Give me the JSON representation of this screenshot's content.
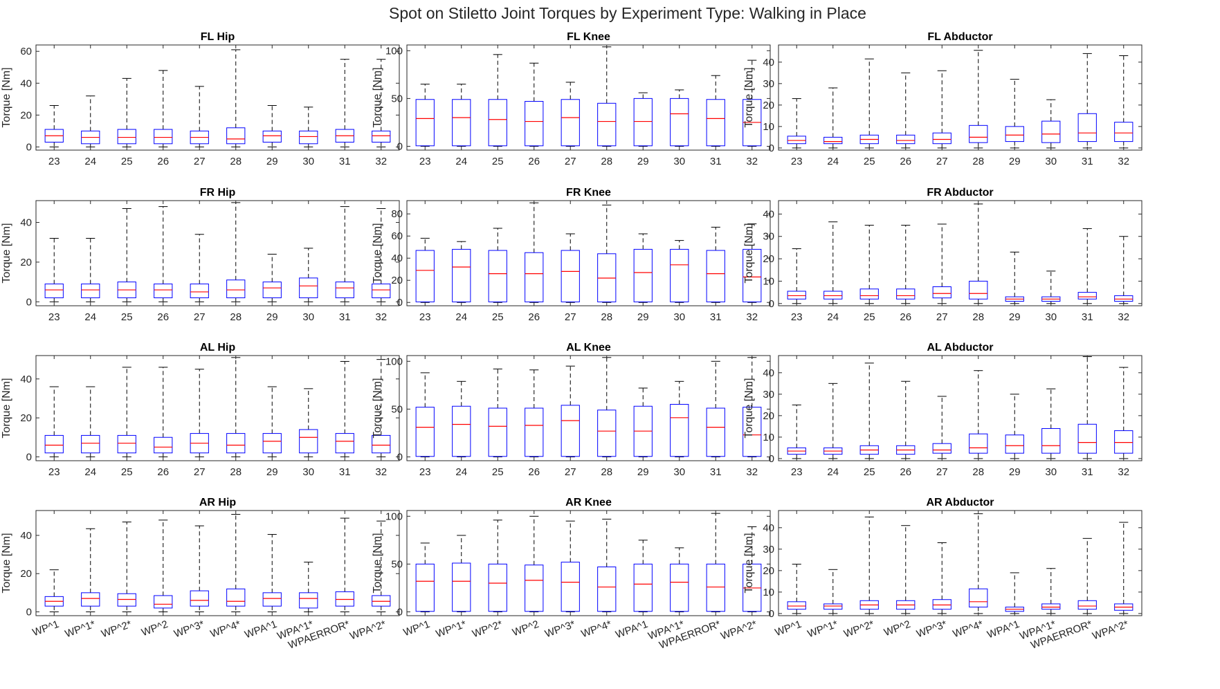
{
  "figure": {
    "title": "Spot on Stiletto Joint Torques by Experiment Type: Walking in Place"
  },
  "style": {
    "box_color": "#0000ff",
    "median_color": "#ff0000",
    "whisker_color": "#000000",
    "axes_color": "#262626"
  },
  "chart_data": [
    {
      "type": "box",
      "title": "FL Hip",
      "ylabel": "Torque [Nm]",
      "ylim": [
        -2,
        64
      ],
      "yticks": [
        0,
        20,
        40,
        60
      ],
      "categories": [
        "23",
        "24",
        "25",
        "26",
        "27",
        "28",
        "29",
        "30",
        "31",
        "32"
      ],
      "boxes": [
        [
          0,
          3,
          7,
          11,
          26
        ],
        [
          0,
          2,
          6,
          10,
          32
        ],
        [
          0,
          2,
          6,
          11,
          43
        ],
        [
          0,
          2,
          6,
          11,
          48
        ],
        [
          0,
          2,
          6,
          10,
          38
        ],
        [
          0,
          2,
          5,
          12,
          61
        ],
        [
          0,
          3,
          7,
          10,
          26
        ],
        [
          0,
          2,
          6.5,
          10,
          25
        ],
        [
          0,
          3,
          7,
          11,
          55
        ],
        [
          0,
          3,
          7,
          10,
          55
        ]
      ]
    },
    {
      "type": "box",
      "title": "FL Knee",
      "ylabel": "Torque [Nm]",
      "ylim": [
        -4,
        106
      ],
      "yticks": [
        0,
        50,
        100
      ],
      "categories": [
        "23",
        "24",
        "25",
        "26",
        "27",
        "28",
        "29",
        "30",
        "31",
        "32"
      ],
      "boxes": [
        [
          0,
          0.5,
          29,
          49,
          65
        ],
        [
          0,
          0.5,
          30,
          49,
          65
        ],
        [
          0,
          0.5,
          28,
          49,
          96
        ],
        [
          0,
          0.5,
          26,
          47,
          87
        ],
        [
          0,
          0.5,
          30,
          49,
          67
        ],
        [
          0,
          0.5,
          26,
          45,
          104
        ],
        [
          0,
          0.5,
          26,
          50,
          56
        ],
        [
          0,
          0.5,
          34,
          50,
          59
        ],
        [
          0,
          0.5,
          29,
          49,
          74
        ],
        [
          0,
          0.5,
          25,
          49,
          90
        ]
      ]
    },
    {
      "type": "box",
      "title": "FL Abductor",
      "ylabel": "Torque [Nm]",
      "ylim": [
        -1,
        48
      ],
      "yticks": [
        0,
        10,
        20,
        30,
        40
      ],
      "categories": [
        "23",
        "24",
        "25",
        "26",
        "27",
        "28",
        "29",
        "30",
        "31",
        "32"
      ],
      "boxes": [
        [
          0,
          2,
          3.5,
          5.5,
          23
        ],
        [
          0,
          2,
          3,
          5,
          28
        ],
        [
          0,
          2,
          4,
          6,
          41.5
        ],
        [
          0,
          2,
          3.5,
          6,
          35
        ],
        [
          0,
          2,
          4,
          7,
          36
        ],
        [
          0,
          2.5,
          5,
          10.5,
          45.5
        ],
        [
          0,
          3,
          6,
          10,
          32
        ],
        [
          0,
          2.5,
          6.5,
          12.5,
          22.5
        ],
        [
          0,
          3,
          7,
          16,
          44
        ],
        [
          0,
          3,
          7,
          12,
          43
        ]
      ]
    },
    {
      "type": "box",
      "title": "FR Hip",
      "ylabel": "Torque [Nm]",
      "ylim": [
        -2,
        51
      ],
      "yticks": [
        0,
        20,
        40
      ],
      "categories": [
        "23",
        "24",
        "25",
        "26",
        "27",
        "28",
        "29",
        "30",
        "31",
        "32"
      ],
      "boxes": [
        [
          0,
          2,
          6,
          9,
          32
        ],
        [
          0,
          2,
          6,
          9,
          32
        ],
        [
          0,
          2,
          6,
          10,
          47
        ],
        [
          0,
          2,
          6,
          9,
          48
        ],
        [
          0,
          2,
          5,
          9,
          34
        ],
        [
          0,
          2,
          6,
          11,
          50
        ],
        [
          0,
          2,
          7,
          10,
          24
        ],
        [
          0,
          2,
          8,
          12,
          27
        ],
        [
          0,
          2,
          7,
          10,
          48
        ],
        [
          0,
          2,
          6,
          9,
          47
        ]
      ]
    },
    {
      "type": "box",
      "title": "FR Knee",
      "ylabel": "Torque [Nm]",
      "ylim": [
        -3,
        92
      ],
      "yticks": [
        0,
        20,
        40,
        60,
        80
      ],
      "categories": [
        "23",
        "24",
        "25",
        "26",
        "27",
        "28",
        "29",
        "30",
        "31",
        "32"
      ],
      "boxes": [
        [
          0,
          0.5,
          29,
          47,
          58
        ],
        [
          0,
          0.5,
          32,
          48,
          55
        ],
        [
          0,
          0.5,
          26,
          47,
          67
        ],
        [
          0,
          0.5,
          26,
          45,
          90
        ],
        [
          0,
          0.5,
          28,
          47,
          62
        ],
        [
          0,
          0.5,
          22,
          44,
          88
        ],
        [
          0,
          0.5,
          27,
          48,
          62
        ],
        [
          0,
          0.5,
          34,
          48,
          56
        ],
        [
          0,
          0.5,
          26,
          47,
          68
        ],
        [
          0,
          0.5,
          23,
          48,
          71
        ]
      ]
    },
    {
      "type": "box",
      "title": "FR Abductor",
      "ylabel": "Torque [Nm]",
      "ylim": [
        -1,
        46
      ],
      "yticks": [
        0,
        10,
        20,
        30,
        40
      ],
      "categories": [
        "23",
        "24",
        "25",
        "26",
        "27",
        "28",
        "29",
        "30",
        "31",
        "32"
      ],
      "boxes": [
        [
          0,
          2,
          3.5,
          5.5,
          24.5
        ],
        [
          0,
          2,
          3.5,
          5.5,
          36.5
        ],
        [
          0,
          2,
          3.5,
          6.5,
          35
        ],
        [
          0,
          2,
          3.5,
          6.5,
          35
        ],
        [
          0,
          2.5,
          4.5,
          7.5,
          35.5
        ],
        [
          0,
          2,
          4.5,
          10,
          44.5
        ],
        [
          0,
          1,
          2,
          3,
          23
        ],
        [
          0,
          1,
          2,
          3,
          14.5
        ],
        [
          0,
          2,
          3,
          5,
          33.5
        ],
        [
          0,
          1,
          2,
          3.5,
          30
        ]
      ]
    },
    {
      "type": "box",
      "title": "AL Hip",
      "ylabel": "Torque [Nm]",
      "ylim": [
        -2,
        52
      ],
      "yticks": [
        0,
        20,
        40
      ],
      "categories": [
        "23",
        "24",
        "25",
        "26",
        "27",
        "28",
        "29",
        "30",
        "31",
        "32"
      ],
      "boxes": [
        [
          0,
          2,
          6,
          11,
          36
        ],
        [
          0,
          2,
          7,
          11,
          36
        ],
        [
          0,
          2,
          7,
          11,
          46
        ],
        [
          0,
          2,
          5,
          10,
          46
        ],
        [
          0,
          2,
          7,
          12,
          45
        ],
        [
          0,
          2,
          6,
          12,
          51
        ],
        [
          0,
          2,
          8,
          12,
          36
        ],
        [
          0,
          2,
          10,
          14,
          35
        ],
        [
          0,
          2,
          8,
          12,
          49
        ],
        [
          0,
          2,
          6,
          11,
          50
        ]
      ]
    },
    {
      "type": "box",
      "title": "AL Knee",
      "ylabel": "Torque [Nm]",
      "ylim": [
        -4,
        106
      ],
      "yticks": [
        0,
        50,
        100
      ],
      "categories": [
        "23",
        "24",
        "25",
        "26",
        "27",
        "28",
        "29",
        "30",
        "31",
        "32"
      ],
      "boxes": [
        [
          0,
          0.5,
          31,
          52,
          88
        ],
        [
          0,
          0.5,
          34,
          53,
          79
        ],
        [
          0,
          0.5,
          32,
          51,
          92
        ],
        [
          0,
          0.5,
          33,
          51,
          91
        ],
        [
          0,
          0.5,
          38,
          54,
          95
        ],
        [
          0,
          0.5,
          27,
          49,
          104
        ],
        [
          0,
          0.5,
          27,
          53,
          72
        ],
        [
          0,
          0.5,
          41,
          55,
          79
        ],
        [
          0,
          0.5,
          31,
          51,
          100
        ],
        [
          0,
          0.5,
          23,
          52,
          104
        ]
      ]
    },
    {
      "type": "box",
      "title": "AL Abductor",
      "ylabel": "Torque [Nm]",
      "ylim": [
        -1,
        48
      ],
      "yticks": [
        0,
        10,
        20,
        30,
        40
      ],
      "categories": [
        "23",
        "24",
        "25",
        "26",
        "27",
        "28",
        "29",
        "30",
        "31",
        "32"
      ],
      "boxes": [
        [
          0,
          2,
          3.5,
          5,
          25
        ],
        [
          0,
          2,
          3.5,
          5,
          35
        ],
        [
          0,
          2,
          4,
          6,
          44.5
        ],
        [
          0,
          2,
          4,
          6,
          36
        ],
        [
          0,
          2.5,
          4,
          7,
          29
        ],
        [
          0,
          2.5,
          5,
          11.5,
          41
        ],
        [
          0,
          2.5,
          6,
          11,
          30
        ],
        [
          0,
          2.5,
          6,
          14,
          32.5
        ],
        [
          0,
          2.5,
          7.5,
          16,
          47.5
        ],
        [
          0,
          2.5,
          7.5,
          13,
          42.5
        ]
      ]
    },
    {
      "type": "box",
      "title": "AR Hip",
      "ylabel": "Torque [Nm]",
      "ylim": [
        -2,
        53
      ],
      "yticks": [
        0,
        20,
        40
      ],
      "categories": [
        "WP^1",
        "WP^1*",
        "WP^2*",
        "WP^2",
        "WP^3*",
        "WP^4*",
        "WPA^1",
        "WPA^1*",
        "WPAERROR*",
        "WPA^2*"
      ],
      "boxes": [
        [
          0,
          3,
          5.5,
          8,
          22
        ],
        [
          0,
          3,
          7,
          10,
          43.5
        ],
        [
          0,
          3,
          6.5,
          9.5,
          47
        ],
        [
          0,
          2,
          4,
          8.5,
          48
        ],
        [
          0,
          3,
          6,
          11,
          45
        ],
        [
          0,
          3,
          5.5,
          12,
          51
        ],
        [
          0,
          3,
          7,
          10,
          40.5
        ],
        [
          0,
          2,
          7,
          10,
          26
        ],
        [
          0,
          3,
          6.5,
          10.5,
          49
        ],
        [
          0,
          3,
          5.5,
          8.5,
          47.5
        ]
      ]
    },
    {
      "type": "box",
      "title": "AR Knee",
      "ylabel": "Torque [Nm]",
      "ylim": [
        -4,
        106
      ],
      "yticks": [
        0,
        50,
        100
      ],
      "categories": [
        "WP^1",
        "WP^1*",
        "WP^2*",
        "WP^2",
        "WP^3*",
        "WP^4*",
        "WPA^1",
        "WPA^1*",
        "WPAERROR*",
        "WPA^2*"
      ],
      "boxes": [
        [
          0,
          0.5,
          32,
          50,
          72
        ],
        [
          0,
          0.5,
          32,
          51,
          80
        ],
        [
          0,
          0.5,
          30,
          50,
          96
        ],
        [
          0,
          0.5,
          33,
          49,
          100
        ],
        [
          0,
          0.5,
          31,
          52,
          95
        ],
        [
          0,
          0.5,
          26,
          47,
          97
        ],
        [
          0,
          0.5,
          29,
          50,
          75
        ],
        [
          0,
          0.5,
          31,
          50,
          67
        ],
        [
          0,
          0.5,
          26,
          50,
          103
        ],
        [
          0,
          0.5,
          25,
          50,
          89
        ]
      ]
    },
    {
      "type": "box",
      "title": "AR Abductor",
      "ylabel": "Torque [Nm]",
      "ylim": [
        -1,
        48
      ],
      "yticks": [
        0,
        10,
        20,
        30,
        40
      ],
      "categories": [
        "WP^1",
        "WP^1*",
        "WP^2*",
        "WP^2",
        "WP^3*",
        "WP^4*",
        "WPA^1",
        "WPA^1*",
        "WPAERROR*",
        "WPA^2*"
      ],
      "boxes": [
        [
          0,
          2,
          3.5,
          5.5,
          23
        ],
        [
          0,
          2,
          3.5,
          4.5,
          20.5
        ],
        [
          0,
          2,
          4,
          6,
          45
        ],
        [
          0,
          2,
          4,
          6,
          41
        ],
        [
          0,
          2,
          4,
          6.5,
          33
        ],
        [
          0,
          3,
          5.5,
          11.5,
          46.5
        ],
        [
          0,
          1,
          2,
          3,
          19
        ],
        [
          0,
          2,
          3,
          4.5,
          21
        ],
        [
          0,
          2,
          3.5,
          6,
          35
        ],
        [
          0,
          1.5,
          3,
          4.5,
          42.5
        ]
      ]
    }
  ]
}
